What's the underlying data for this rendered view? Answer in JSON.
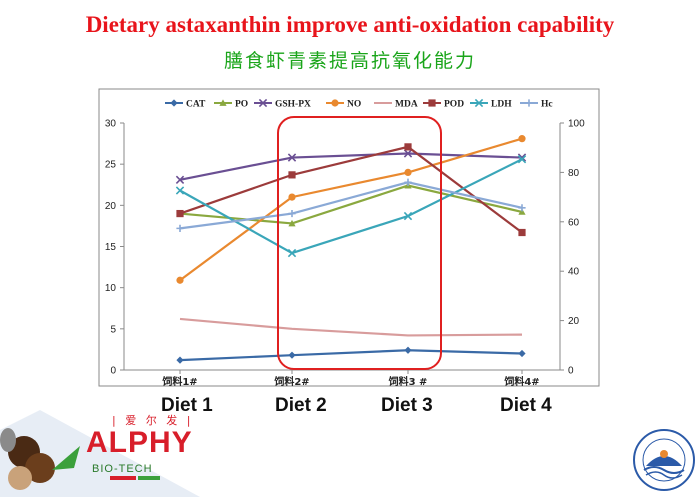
{
  "slide": {
    "title": "Dietary astaxanthin improve anti-oxidation capability",
    "subtitle": "膳食虾青素提高抗氧化能力",
    "diet_labels": [
      "Diet 1",
      "Diet 2",
      "Diet 3",
      "Diet 4"
    ]
  },
  "logo": {
    "brand_cn": "| 爱 尔 发 |",
    "brand": "ALPHY",
    "brand_sub": "BIO-TECH"
  },
  "chart_data": {
    "type": "line",
    "categories": [
      "饲料1#",
      "饲料2#",
      "饲料3 #",
      "饲料4#"
    ],
    "left_axis": {
      "min": 0,
      "max": 30,
      "ticks": [
        0,
        5,
        10,
        15,
        20,
        25,
        30
      ]
    },
    "right_axis": {
      "min": 0,
      "max": 100,
      "ticks": [
        0,
        20,
        40,
        60,
        80,
        100
      ]
    },
    "legend_position": "top",
    "highlight": {
      "categories": [
        "饲料2#",
        "饲料3 #"
      ],
      "color": "#e02020"
    },
    "series": [
      {
        "name": "CAT",
        "axis": "left",
        "values": [
          1.2,
          1.8,
          2.4,
          2.0
        ],
        "color": "#3a6aa6",
        "marker": "diamond"
      },
      {
        "name": "PO",
        "axis": "left",
        "values": [
          19.0,
          17.8,
          22.4,
          19.2
        ],
        "color": "#8aa83f",
        "marker": "triangle"
      },
      {
        "name": "GSH-PX",
        "axis": "left",
        "values": [
          23.1,
          25.8,
          26.3,
          25.8
        ],
        "color": "#6a4f93",
        "marker": "x"
      },
      {
        "name": "NO",
        "axis": "left",
        "values": [
          10.9,
          21.0,
          24.0,
          28.1
        ],
        "color": "#e9892f",
        "marker": "circle"
      },
      {
        "name": "MDA",
        "axis": "left",
        "values": [
          6.2,
          5.0,
          4.2,
          4.3
        ],
        "color": "#d89c9c",
        "marker": "none"
      },
      {
        "name": "POD",
        "axis": "left",
        "values": [
          19.0,
          23.7,
          27.1,
          16.7
        ],
        "color": "#9c3b3b",
        "marker": "square"
      },
      {
        "name": "LDH",
        "axis": "left",
        "values": [
          21.8,
          14.2,
          18.7,
          25.6
        ],
        "color": "#3aa6b9",
        "marker": "x"
      },
      {
        "name": "Hc",
        "axis": "left",
        "values": [
          17.2,
          19.0,
          22.8,
          19.7
        ],
        "color": "#8aa9d6",
        "marker": "plus"
      }
    ]
  }
}
